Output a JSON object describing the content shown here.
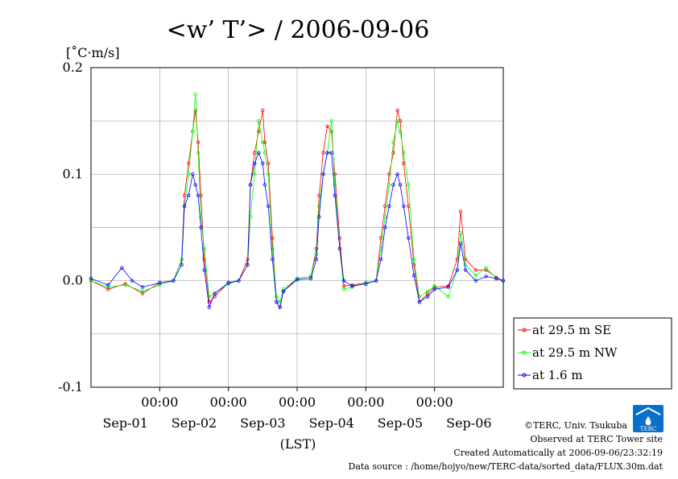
{
  "chart_data": {
    "type": "line",
    "title": "<w’ T’> / 2006-09-06",
    "unit_label": "[˚C·m/s]",
    "xlabel": "(LST)",
    "ylim": [
      -0.1,
      0.2
    ],
    "yticks": [
      {
        "value": 0.2,
        "label": "0.2"
      },
      {
        "value": 0.1,
        "label": "0.1"
      },
      {
        "value": 0.0,
        "label": "0.0"
      },
      {
        "value": -0.1,
        "label": "-0.1"
      }
    ],
    "x_days_range": [
      0,
      6
    ],
    "xticks": [
      {
        "day": 1,
        "time_label": "00:00"
      },
      {
        "day": 2,
        "time_label": "00:00"
      },
      {
        "day": 3,
        "time_label": "00:00"
      },
      {
        "day": 4,
        "time_label": "00:00"
      },
      {
        "day": 5,
        "time_label": "00:00"
      }
    ],
    "date_labels": [
      {
        "day": 0.5,
        "label": "Sep-01"
      },
      {
        "day": 1.5,
        "label": "Sep-02"
      },
      {
        "day": 2.5,
        "label": "Sep-03"
      },
      {
        "day": 3.5,
        "label": "Sep-04"
      },
      {
        "day": 4.5,
        "label": "Sep-05"
      },
      {
        "day": 5.5,
        "label": "Sep-06"
      }
    ],
    "grid": true,
    "legend_position": "right",
    "series": [
      {
        "name": "at 29.5 m SE",
        "color": "#ff0000",
        "points": [
          [
            0.0,
            0.0
          ],
          [
            0.25,
            -0.008
          ],
          [
            0.5,
            -0.003
          ],
          [
            0.75,
            -0.012
          ],
          [
            1.0,
            -0.002
          ],
          [
            1.2,
            0.0
          ],
          [
            1.32,
            0.02
          ],
          [
            1.36,
            0.08
          ],
          [
            1.42,
            0.11
          ],
          [
            1.48,
            0.14
          ],
          [
            1.52,
            0.16
          ],
          [
            1.56,
            0.13
          ],
          [
            1.6,
            0.08
          ],
          [
            1.65,
            0.02
          ],
          [
            1.72,
            -0.02
          ],
          [
            1.8,
            -0.015
          ],
          [
            2.0,
            -0.002
          ],
          [
            2.15,
            0.0
          ],
          [
            2.28,
            0.02
          ],
          [
            2.32,
            0.09
          ],
          [
            2.38,
            0.12
          ],
          [
            2.44,
            0.14
          ],
          [
            2.5,
            0.16
          ],
          [
            2.53,
            0.13
          ],
          [
            2.58,
            0.11
          ],
          [
            2.64,
            0.04
          ],
          [
            2.7,
            -0.02
          ],
          [
            2.75,
            -0.025
          ],
          [
            2.8,
            -0.01
          ],
          [
            3.0,
            0.002
          ],
          [
            3.2,
            0.004
          ],
          [
            3.28,
            0.03
          ],
          [
            3.32,
            0.08
          ],
          [
            3.38,
            0.12
          ],
          [
            3.44,
            0.145
          ],
          [
            3.5,
            0.14
          ],
          [
            3.55,
            0.1
          ],
          [
            3.62,
            0.04
          ],
          [
            3.68,
            -0.005
          ],
          [
            3.8,
            -0.004
          ],
          [
            4.0,
            -0.002
          ],
          [
            4.15,
            0.0
          ],
          [
            4.22,
            0.04
          ],
          [
            4.28,
            0.07
          ],
          [
            4.34,
            0.1
          ],
          [
            4.4,
            0.12
          ],
          [
            4.46,
            0.16
          ],
          [
            4.5,
            0.15
          ],
          [
            4.55,
            0.11
          ],
          [
            4.62,
            0.07
          ],
          [
            4.7,
            0.015
          ],
          [
            4.78,
            -0.02
          ],
          [
            4.9,
            -0.012
          ],
          [
            5.0,
            -0.006
          ],
          [
            5.2,
            -0.005
          ],
          [
            5.33,
            0.02
          ],
          [
            5.38,
            0.065
          ],
          [
            5.45,
            0.02
          ],
          [
            5.6,
            0.01
          ],
          [
            5.75,
            0.01
          ],
          [
            5.9,
            0.003
          ],
          [
            6.0,
            0.0
          ]
        ]
      },
      {
        "name": "at 29.5 m NW",
        "color": "#00ff00",
        "points": [
          [
            0.0,
            0.0
          ],
          [
            0.25,
            -0.006
          ],
          [
            0.5,
            -0.004
          ],
          [
            0.75,
            -0.01
          ],
          [
            1.0,
            -0.004
          ],
          [
            1.2,
            0.0
          ],
          [
            1.32,
            0.02
          ],
          [
            1.36,
            0.07
          ],
          [
            1.42,
            0.1
          ],
          [
            1.48,
            0.14
          ],
          [
            1.52,
            0.175
          ],
          [
            1.56,
            0.12
          ],
          [
            1.6,
            0.06
          ],
          [
            1.65,
            0.03
          ],
          [
            1.72,
            -0.015
          ],
          [
            1.8,
            -0.012
          ],
          [
            2.0,
            -0.003
          ],
          [
            2.15,
            0.0
          ],
          [
            2.28,
            0.015
          ],
          [
            2.32,
            0.06
          ],
          [
            2.38,
            0.1
          ],
          [
            2.44,
            0.15
          ],
          [
            2.5,
            0.13
          ],
          [
            2.53,
            0.12
          ],
          [
            2.58,
            0.1
          ],
          [
            2.64,
            0.03
          ],
          [
            2.7,
            -0.015
          ],
          [
            2.75,
            -0.02
          ],
          [
            2.8,
            -0.008
          ],
          [
            3.0,
            0.002
          ],
          [
            3.2,
            0.004
          ],
          [
            3.28,
            0.025
          ],
          [
            3.32,
            0.07
          ],
          [
            3.38,
            0.1
          ],
          [
            3.44,
            0.12
          ],
          [
            3.5,
            0.15
          ],
          [
            3.55,
            0.09
          ],
          [
            3.62,
            0.03
          ],
          [
            3.68,
            -0.008
          ],
          [
            3.8,
            -0.006
          ],
          [
            4.0,
            -0.002
          ],
          [
            4.15,
            0.0
          ],
          [
            4.22,
            0.03
          ],
          [
            4.28,
            0.06
          ],
          [
            4.34,
            0.09
          ],
          [
            4.4,
            0.13
          ],
          [
            4.46,
            0.15
          ],
          [
            4.5,
            0.14
          ],
          [
            4.55,
            0.12
          ],
          [
            4.62,
            0.09
          ],
          [
            4.7,
            0.02
          ],
          [
            4.78,
            -0.015
          ],
          [
            4.9,
            -0.01
          ],
          [
            5.0,
            -0.005
          ],
          [
            5.2,
            -0.015
          ],
          [
            5.33,
            0.01
          ],
          [
            5.38,
            0.045
          ],
          [
            5.45,
            0.015
          ],
          [
            5.6,
            0.005
          ],
          [
            5.75,
            0.012
          ],
          [
            5.9,
            0.002
          ],
          [
            6.0,
            0.0
          ]
        ]
      },
      {
        "name": "at 1.6 m",
        "color": "#0000ff",
        "points": [
          [
            0.0,
            0.002
          ],
          [
            0.25,
            -0.004
          ],
          [
            0.45,
            0.012
          ],
          [
            0.6,
            0.0
          ],
          [
            0.75,
            -0.006
          ],
          [
            1.0,
            -0.002
          ],
          [
            1.2,
            0.0
          ],
          [
            1.32,
            0.015
          ],
          [
            1.36,
            0.07
          ],
          [
            1.42,
            0.08
          ],
          [
            1.48,
            0.1
          ],
          [
            1.52,
            0.09
          ],
          [
            1.56,
            0.08
          ],
          [
            1.6,
            0.05
          ],
          [
            1.65,
            0.01
          ],
          [
            1.72,
            -0.025
          ],
          [
            1.8,
            -0.012
          ],
          [
            2.0,
            -0.002
          ],
          [
            2.15,
            0.0
          ],
          [
            2.28,
            0.015
          ],
          [
            2.32,
            0.09
          ],
          [
            2.38,
            0.11
          ],
          [
            2.44,
            0.12
          ],
          [
            2.5,
            0.11
          ],
          [
            2.53,
            0.09
          ],
          [
            2.58,
            0.07
          ],
          [
            2.64,
            0.02
          ],
          [
            2.7,
            -0.02
          ],
          [
            2.75,
            -0.025
          ],
          [
            2.8,
            -0.01
          ],
          [
            3.0,
            0.001
          ],
          [
            3.2,
            0.002
          ],
          [
            3.28,
            0.02
          ],
          [
            3.32,
            0.06
          ],
          [
            3.38,
            0.1
          ],
          [
            3.44,
            0.12
          ],
          [
            3.5,
            0.12
          ],
          [
            3.55,
            0.08
          ],
          [
            3.62,
            0.03
          ],
          [
            3.68,
            0.0
          ],
          [
            3.8,
            -0.005
          ],
          [
            4.0,
            -0.003
          ],
          [
            4.15,
            0.0
          ],
          [
            4.22,
            0.02
          ],
          [
            4.28,
            0.05
          ],
          [
            4.34,
            0.07
          ],
          [
            4.4,
            0.09
          ],
          [
            4.46,
            0.1
          ],
          [
            4.5,
            0.09
          ],
          [
            4.55,
            0.07
          ],
          [
            4.62,
            0.04
          ],
          [
            4.7,
            0.005
          ],
          [
            4.78,
            -0.02
          ],
          [
            4.9,
            -0.015
          ],
          [
            5.0,
            -0.008
          ],
          [
            5.2,
            -0.006
          ],
          [
            5.33,
            0.01
          ],
          [
            5.38,
            0.035
          ],
          [
            5.45,
            0.01
          ],
          [
            5.6,
            0.0
          ],
          [
            5.75,
            0.004
          ],
          [
            5.9,
            0.002
          ],
          [
            6.0,
            0.0
          ]
        ]
      }
    ]
  },
  "footer": {
    "copyright": "©TERC, Univ. Tsukuba",
    "observed": "Observed at TERC Tower site",
    "created": "Created Automatically at 2006-09-06/23:32:19",
    "source": "Data source : /home/hojyo/new/TERC-data/sorted_data/FLUX.30m.dat"
  },
  "logo": {
    "text": "TERC",
    "color": "#0a6fc9"
  }
}
